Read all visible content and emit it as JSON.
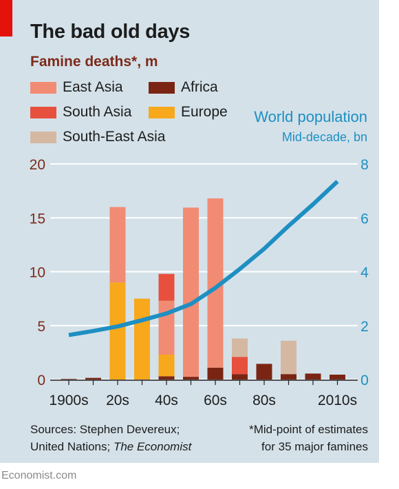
{
  "page": {
    "title": "The bad old days",
    "subtitle": "Famine deaths*, m",
    "pop_title": "World population",
    "pop_subtitle": "Mid-decade, bn",
    "source_line1": "Sources: Stephen Devereux;",
    "source_line2": "United Nations; ",
    "source_line2_italic": "The Economist",
    "note_line1": "*Mid-point of estimates",
    "note_line2": "for 35 major famines",
    "credit": "Economist.com"
  },
  "chart_data": {
    "type": "bar",
    "stacked": true,
    "categories": [
      "1900s",
      "1910s",
      "1920s",
      "1930s",
      "1940s",
      "1950s",
      "1960s",
      "1970s",
      "1980s",
      "1990s",
      "2000s",
      "2010s"
    ],
    "x_tick_labels": [
      "1900s",
      "",
      "20s",
      "",
      "40s",
      "",
      "60s",
      "",
      "80s",
      "",
      "",
      "2010s"
    ],
    "y_left": {
      "ticks": [
        "0",
        "5",
        "10",
        "15",
        "20"
      ],
      "range": [
        0,
        20
      ],
      "unit": "m"
    },
    "y_right": {
      "ticks": [
        "0",
        "2",
        "4",
        "6",
        "8"
      ],
      "range": [
        0,
        8
      ],
      "unit": "bn"
    },
    "grid": true,
    "legend": [
      {
        "name": "East Asia",
        "color": "#f28b73"
      },
      {
        "name": "Africa",
        "color": "#7a2514"
      },
      {
        "name": "South Asia",
        "color": "#e6503d"
      },
      {
        "name": "Europe",
        "color": "#f7a81b"
      },
      {
        "name": "South-East Asia",
        "color": "#d5b8a2"
      }
    ],
    "series": [
      {
        "name": "Africa",
        "color": "#7a2514",
        "values": [
          0.05,
          0.15,
          0,
          0,
          0.3,
          0.25,
          1.1,
          0.5,
          1.45,
          0.5,
          0.55,
          0.45
        ]
      },
      {
        "name": "Europe",
        "color": "#f7a81b",
        "values": [
          0,
          0,
          9,
          7.5,
          2,
          0,
          0,
          0,
          0,
          0,
          0,
          0
        ]
      },
      {
        "name": "East Asia",
        "color": "#f28b73",
        "values": [
          0,
          0,
          7,
          0,
          5,
          15.7,
          15.7,
          0,
          0,
          0,
          0,
          0
        ]
      },
      {
        "name": "South Asia",
        "color": "#e6503d",
        "values": [
          0,
          0,
          0,
          0,
          2.5,
          0,
          0,
          1.6,
          0,
          0,
          0,
          0
        ]
      },
      {
        "name": "South-East Asia",
        "color": "#d5b8a2",
        "values": [
          0,
          0,
          0,
          0,
          0,
          0,
          0,
          1.7,
          0,
          3.1,
          0,
          0
        ]
      }
    ],
    "line_series": {
      "name": "World population",
      "color": "#1e8fc2",
      "axis": "right",
      "values": [
        1.65,
        1.8,
        1.97,
        2.2,
        2.45,
        2.8,
        3.4,
        4.1,
        4.85,
        5.7,
        6.5,
        7.35
      ]
    }
  }
}
